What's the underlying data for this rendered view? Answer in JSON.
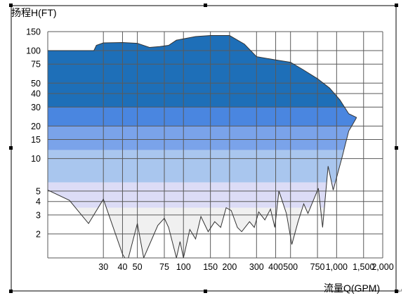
{
  "chart_data": {
    "type": "area",
    "title": "",
    "ylabel": "扬程H(FT)",
    "xlabel": "流量Q(GPM)",
    "x_scale": "log",
    "y_scale": "log",
    "xlim": [
      13,
      2000
    ],
    "ylim": [
      1.2,
      150
    ],
    "x_ticks": [
      {
        "value": 30,
        "label": "30"
      },
      {
        "value": 40,
        "label": "40"
      },
      {
        "value": 50,
        "label": "50"
      },
      {
        "value": 75,
        "label": "75"
      },
      {
        "value": 100,
        "label": "100"
      },
      {
        "value": 150,
        "label": "150"
      },
      {
        "value": 200,
        "label": "200"
      },
      {
        "value": 300,
        "label": "300"
      },
      {
        "value": 400,
        "label": "400"
      },
      {
        "value": 500,
        "label": "500"
      },
      {
        "value": 750,
        "label": "750"
      },
      {
        "value": 1000,
        "label": "1,000"
      },
      {
        "value": 1500,
        "label": "1,500"
      },
      {
        "value": 2000,
        "label": "2,000"
      }
    ],
    "y_ticks": [
      {
        "value": 2,
        "label": "2"
      },
      {
        "value": 3,
        "label": "3"
      },
      {
        "value": 4,
        "label": "4"
      },
      {
        "value": 5,
        "label": "5"
      },
      {
        "value": 10,
        "label": "10"
      },
      {
        "value": 15,
        "label": "15"
      },
      {
        "value": 20,
        "label": "20"
      },
      {
        "value": 30,
        "label": "30"
      },
      {
        "value": 40,
        "label": "40"
      },
      {
        "value": 50,
        "label": "50"
      },
      {
        "value": 75,
        "label": "75"
      },
      {
        "value": 100,
        "label": "100"
      },
      {
        "value": 150,
        "label": "150"
      }
    ],
    "grid": true,
    "upper_envelope": [
      [
        13,
        100
      ],
      [
        26,
        100
      ],
      [
        27,
        112
      ],
      [
        30,
        118
      ],
      [
        40,
        119
      ],
      [
        50,
        117
      ],
      [
        60,
        107
      ],
      [
        70,
        109
      ],
      [
        80,
        112
      ],
      [
        90,
        125
      ],
      [
        120,
        135
      ],
      [
        150,
        138
      ],
      [
        200,
        138
      ],
      [
        250,
        115
      ],
      [
        300,
        88
      ],
      [
        400,
        82
      ],
      [
        500,
        78
      ],
      [
        600,
        67
      ],
      [
        750,
        55
      ],
      [
        900,
        45
      ],
      [
        1050,
        35
      ],
      [
        1200,
        26
      ],
      [
        1350,
        24
      ]
    ],
    "lower_envelope": [
      [
        13,
        5.1
      ],
      [
        18,
        4.1
      ],
      [
        24,
        2.5
      ],
      [
        30,
        4.2
      ],
      [
        40,
        1.3
      ],
      [
        43,
        1.1
      ],
      [
        50,
        2.5
      ],
      [
        55,
        1.2
      ],
      [
        68,
        2.4
      ],
      [
        75,
        2.8
      ],
      [
        80,
        2.3
      ],
      [
        90,
        1.2
      ],
      [
        95,
        1.7
      ],
      [
        100,
        1.2
      ],
      [
        110,
        2.2
      ],
      [
        120,
        1.8
      ],
      [
        130,
        2.9
      ],
      [
        145,
        2.1
      ],
      [
        160,
        2.6
      ],
      [
        175,
        2.3
      ],
      [
        190,
        3.5
      ],
      [
        205,
        3.3
      ],
      [
        225,
        2.3
      ],
      [
        240,
        2.1
      ],
      [
        270,
        2.6
      ],
      [
        290,
        2.3
      ],
      [
        310,
        3.2
      ],
      [
        340,
        2.7
      ],
      [
        370,
        3.4
      ],
      [
        395,
        2.3
      ],
      [
        420,
        5.0
      ],
      [
        470,
        3.1
      ],
      [
        510,
        1.6
      ],
      [
        560,
        2.6
      ],
      [
        610,
        3.8
      ],
      [
        650,
        3.1
      ],
      [
        700,
        4.0
      ],
      [
        760,
        5.3
      ],
      [
        810,
        2.3
      ],
      [
        880,
        8.5
      ],
      [
        950,
        5.1
      ],
      [
        1080,
        10.0
      ],
      [
        1200,
        18.0
      ],
      [
        1280,
        21.0
      ],
      [
        1350,
        24
      ]
    ],
    "color_bands": [
      {
        "from": 30,
        "to": 150,
        "color": "#1e6fb8"
      },
      {
        "from": 20,
        "to": 30,
        "color": "#4a86e0"
      },
      {
        "from": 12,
        "to": 20,
        "color": "#7aa3ea"
      },
      {
        "from": 6,
        "to": 12,
        "color": "#a9c6ee"
      },
      {
        "from": 3.5,
        "to": 6,
        "color": "#dcdcf6"
      },
      {
        "from": 1,
        "to": 3.5,
        "color": "#f0f0f0"
      }
    ],
    "line_color": "#333333",
    "grid_color": "#5a5a5a"
  }
}
